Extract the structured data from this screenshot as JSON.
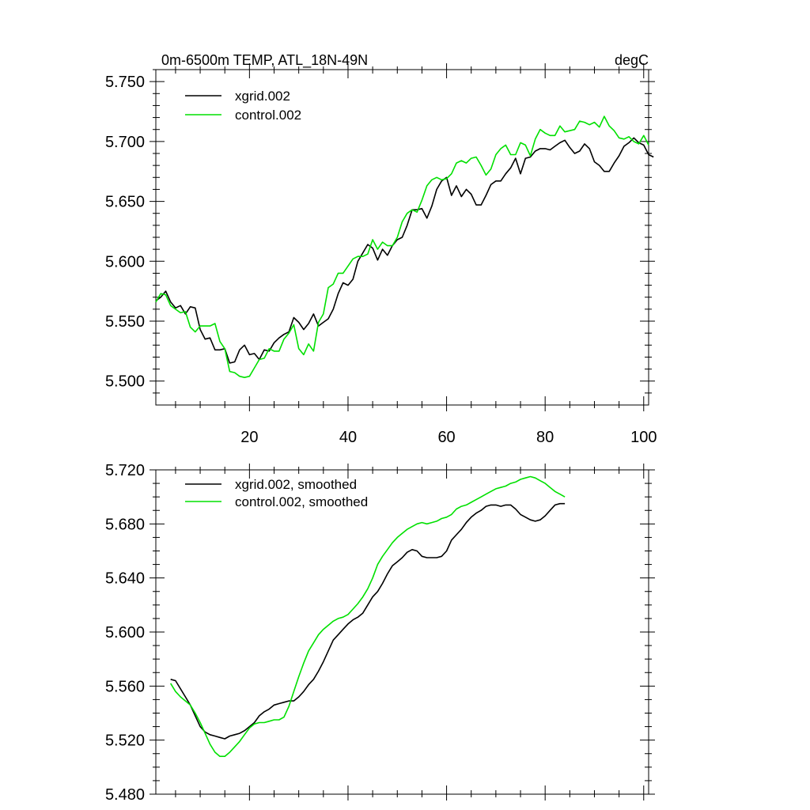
{
  "colors": {
    "xgrid": "#000000",
    "control": "#00e000",
    "axis": "#000000",
    "background": "#ffffff"
  },
  "chart_data": [
    {
      "type": "line",
      "title": "0m-6500m TEMP, ATL_18N-49N",
      "units_label": "degC",
      "xlim": [
        1,
        101
      ],
      "ylim": [
        5.48,
        5.76
      ],
      "y_ticks": [
        "5.500",
        "5.550",
        "5.600",
        "5.650",
        "5.700",
        "5.750"
      ],
      "y_tick_values": [
        5.5,
        5.55,
        5.6,
        5.65,
        5.7,
        5.75
      ],
      "x_ticks": [
        "20",
        "40",
        "60",
        "80",
        "100"
      ],
      "x_tick_values": [
        20,
        40,
        60,
        80,
        100
      ],
      "legend_position": "top-left",
      "series": [
        {
          "name": "xgrid.002",
          "color_key": "xgrid",
          "x_start": 1,
          "values": [
            5.567,
            5.57,
            5.575,
            5.566,
            5.561,
            5.563,
            5.556,
            5.562,
            5.561,
            5.543,
            5.535,
            5.536,
            5.526,
            5.526,
            5.527,
            5.515,
            5.516,
            5.526,
            5.53,
            5.522,
            5.523,
            5.518,
            5.526,
            5.525,
            5.532,
            5.536,
            5.539,
            5.541,
            5.553,
            5.549,
            5.543,
            5.548,
            5.556,
            5.546,
            5.549,
            5.552,
            5.56,
            5.573,
            5.582,
            5.58,
            5.585,
            5.6,
            5.607,
            5.614,
            5.611,
            5.601,
            5.61,
            5.605,
            5.613,
            5.618,
            5.62,
            5.63,
            5.643,
            5.643,
            5.644,
            5.636,
            5.646,
            5.66,
            5.667,
            5.67,
            5.655,
            5.663,
            5.654,
            5.66,
            5.656,
            5.647,
            5.647,
            5.655,
            5.664,
            5.667,
            5.667,
            5.673,
            5.678,
            5.686,
            5.673,
            5.686,
            5.687,
            5.692,
            5.694,
            5.694,
            5.693,
            5.696,
            5.699,
            5.701,
            5.695,
            5.69,
            5.692,
            5.698,
            5.694,
            5.683,
            5.68,
            5.675,
            5.675,
            5.682,
            5.688,
            5.696,
            5.699,
            5.703,
            5.699,
            5.697,
            5.689,
            5.687
          ]
        },
        {
          "name": "control.002",
          "color_key": "control",
          "x_start": 1,
          "values": [
            5.566,
            5.573,
            5.572,
            5.563,
            5.56,
            5.557,
            5.558,
            5.545,
            5.541,
            5.546,
            5.546,
            5.546,
            5.548,
            5.533,
            5.527,
            5.508,
            5.507,
            5.504,
            5.503,
            5.504,
            5.511,
            5.518,
            5.519,
            5.527,
            5.525,
            5.525,
            5.535,
            5.54,
            5.547,
            5.527,
            5.522,
            5.531,
            5.525,
            5.549,
            5.556,
            5.578,
            5.581,
            5.59,
            5.59,
            5.596,
            5.602,
            5.604,
            5.604,
            5.606,
            5.618,
            5.61,
            5.616,
            5.613,
            5.613,
            5.62,
            5.633,
            5.64,
            5.643,
            5.641,
            5.651,
            5.663,
            5.668,
            5.67,
            5.668,
            5.669,
            5.673,
            5.682,
            5.684,
            5.682,
            5.686,
            5.687,
            5.68,
            5.672,
            5.677,
            5.689,
            5.694,
            5.697,
            5.689,
            5.689,
            5.699,
            5.697,
            5.688,
            5.702,
            5.71,
            5.707,
            5.705,
            5.705,
            5.713,
            5.708,
            5.709,
            5.71,
            5.717,
            5.716,
            5.714,
            5.716,
            5.712,
            5.721,
            5.713,
            5.709,
            5.703,
            5.702,
            5.704,
            5.7,
            5.698,
            5.705,
            5.697
          ]
        }
      ]
    },
    {
      "type": "line",
      "title": "",
      "xlim": [
        1,
        101
      ],
      "ylim": [
        5.48,
        5.72
      ],
      "y_ticks": [
        "5.480",
        "5.520",
        "5.560",
        "5.600",
        "5.640",
        "5.680",
        "5.720"
      ],
      "y_tick_values": [
        5.48,
        5.52,
        5.56,
        5.6,
        5.64,
        5.68,
        5.72
      ],
      "x_tick_values": [
        20,
        40,
        60,
        80,
        100
      ],
      "legend_position": "top-left",
      "series": [
        {
          "name": "xgrid.002, smoothed",
          "color_key": "xgrid",
          "x_start": 4,
          "values": [
            5.565,
            5.564,
            5.558,
            5.552,
            5.546,
            5.538,
            5.53,
            5.526,
            5.524,
            5.523,
            5.522,
            5.521,
            5.523,
            5.524,
            5.525,
            5.527,
            5.53,
            5.533,
            5.538,
            5.541,
            5.543,
            5.546,
            5.547,
            5.548,
            5.549,
            5.549,
            5.552,
            5.556,
            5.561,
            5.565,
            5.571,
            5.578,
            5.586,
            5.594,
            5.598,
            5.602,
            5.606,
            5.609,
            5.611,
            5.614,
            5.62,
            5.626,
            5.63,
            5.636,
            5.643,
            5.649,
            5.652,
            5.655,
            5.659,
            5.661,
            5.66,
            5.656,
            5.655,
            5.655,
            5.655,
            5.656,
            5.66,
            5.668,
            5.672,
            5.676,
            5.681,
            5.685,
            5.688,
            5.69,
            5.693,
            5.694,
            5.694,
            5.693,
            5.694,
            5.694,
            5.691,
            5.687,
            5.685,
            5.683,
            5.682,
            5.683,
            5.686,
            5.69,
            5.694,
            5.695,
            5.695
          ]
        },
        {
          "name": "control.002, smoothed",
          "color_key": "control",
          "x_start": 4,
          "values": [
            5.562,
            5.556,
            5.552,
            5.549,
            5.546,
            5.54,
            5.533,
            5.525,
            5.517,
            5.511,
            5.508,
            5.508,
            5.511,
            5.515,
            5.519,
            5.524,
            5.529,
            5.532,
            5.533,
            5.533,
            5.534,
            5.535,
            5.535,
            5.537,
            5.545,
            5.556,
            5.567,
            5.577,
            5.586,
            5.592,
            5.598,
            5.602,
            5.605,
            5.608,
            5.61,
            5.611,
            5.613,
            5.617,
            5.621,
            5.626,
            5.632,
            5.64,
            5.65,
            5.656,
            5.661,
            5.666,
            5.67,
            5.673,
            5.676,
            5.678,
            5.68,
            5.681,
            5.68,
            5.681,
            5.682,
            5.684,
            5.685,
            5.687,
            5.691,
            5.693,
            5.694,
            5.696,
            5.698,
            5.7,
            5.702,
            5.704,
            5.706,
            5.707,
            5.708,
            5.71,
            5.711,
            5.713,
            5.714,
            5.715,
            5.714,
            5.712,
            5.71,
            5.707,
            5.704,
            5.702,
            5.7
          ]
        }
      ]
    }
  ]
}
